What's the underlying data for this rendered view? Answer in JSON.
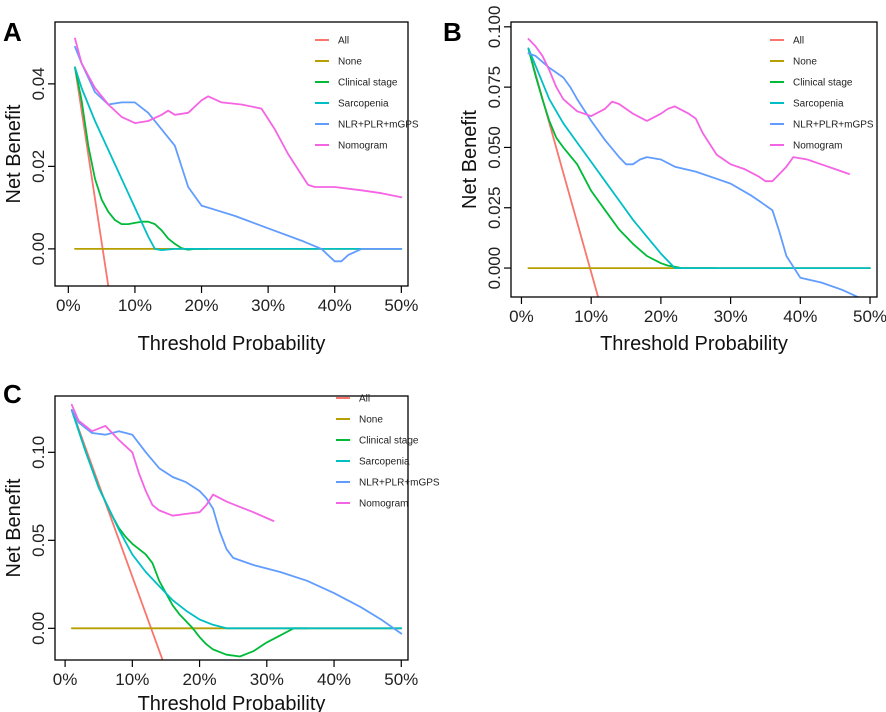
{
  "colors": {
    "All": "#F8766D",
    "None": "#B79F00",
    "Clinical stage": "#00BA38",
    "Sarcopenia": "#00BFC4",
    "NLR+PLR+mGPS": "#619CFF",
    "Nomogram": "#F564E3"
  },
  "chart_data": [
    {
      "panel": "A",
      "type": "line",
      "xlabel": "Threshold Probability",
      "ylabel": "Net Benefit",
      "xlim": [
        -0.02,
        0.51
      ],
      "ylim": [
        -0.009,
        0.055
      ],
      "xticks": [
        0,
        0.1,
        0.2,
        0.3,
        0.4,
        0.5
      ],
      "xtick_labels": [
        "0%",
        "10%",
        "20%",
        "30%",
        "40%",
        "50%"
      ],
      "yticks": [
        0,
        0.02,
        0.04
      ],
      "ytick_labels": [
        "0.00",
        "0.02",
        "0.04"
      ],
      "legend": [
        "All",
        "None",
        "Clinical stage",
        "Sarcopenia",
        "NLR+PLR+mGPS",
        "Nomogram"
      ],
      "series": [
        {
          "name": "All",
          "x": [
            0.01,
            0.06
          ],
          "y": [
            0.044,
            -0.009
          ]
        },
        {
          "name": "None",
          "x": [
            0.01,
            0.5
          ],
          "y": [
            0,
            0
          ]
        },
        {
          "name": "Clinical stage",
          "x": [
            0.01,
            0.02,
            0.03,
            0.04,
            0.05,
            0.06,
            0.07,
            0.08,
            0.09,
            0.1,
            0.11,
            0.12,
            0.13,
            0.14,
            0.15,
            0.16,
            0.17,
            0.18,
            0.19,
            0.2,
            0.21
          ],
          "y": [
            0.044,
            0.036,
            0.025,
            0.017,
            0.012,
            0.009,
            0.007,
            0.006,
            0.006,
            0.0063,
            0.0066,
            0.0066,
            0.006,
            0.0045,
            0.0025,
            0.0012,
            0.0002,
            -0.0002,
            0,
            0,
            0
          ]
        },
        {
          "name": "Sarcopenia",
          "x": [
            0.01,
            0.02,
            0.04,
            0.06,
            0.08,
            0.1,
            0.12,
            0.13,
            0.14,
            0.16,
            0.2,
            0.3,
            0.4,
            0.5
          ],
          "y": [
            0.044,
            0.039,
            0.031,
            0.024,
            0.017,
            0.01,
            0.003,
            0.0,
            -0.0003,
            0,
            0,
            0,
            0,
            0
          ]
        },
        {
          "name": "NLR+PLR+mGPS",
          "x": [
            0.01,
            0.02,
            0.04,
            0.06,
            0.08,
            0.1,
            0.12,
            0.14,
            0.16,
            0.17,
            0.18,
            0.2,
            0.22,
            0.25,
            0.3,
            0.35,
            0.38,
            0.4,
            0.41,
            0.42,
            0.44,
            0.46,
            0.5
          ],
          "y": [
            0.049,
            0.045,
            0.038,
            0.035,
            0.0355,
            0.0355,
            0.033,
            0.029,
            0.025,
            0.02,
            0.015,
            0.0105,
            0.0095,
            0.008,
            0.005,
            0.002,
            0,
            -0.003,
            -0.003,
            -0.0015,
            0,
            0,
            0
          ]
        },
        {
          "name": "Nomogram",
          "x": [
            0.01,
            0.02,
            0.04,
            0.06,
            0.08,
            0.1,
            0.12,
            0.14,
            0.15,
            0.16,
            0.18,
            0.2,
            0.21,
            0.23,
            0.26,
            0.29,
            0.31,
            0.33,
            0.35,
            0.36,
            0.37,
            0.4,
            0.44,
            0.47,
            0.5
          ],
          "y": [
            0.051,
            0.045,
            0.039,
            0.035,
            0.032,
            0.0305,
            0.031,
            0.0325,
            0.0335,
            0.0325,
            0.033,
            0.036,
            0.037,
            0.0355,
            0.035,
            0.034,
            0.029,
            0.023,
            0.018,
            0.0155,
            0.015,
            0.015,
            0.0142,
            0.0135,
            0.0125
          ]
        }
      ]
    },
    {
      "panel": "B",
      "type": "line",
      "xlabel": "Threshold Probability",
      "ylabel": "Net Benefit",
      "xlim": [
        -0.015,
        0.51
      ],
      "ylim": [
        -0.012,
        0.102
      ],
      "xticks": [
        0,
        0.1,
        0.2,
        0.3,
        0.4,
        0.5
      ],
      "xtick_labels": [
        "0%",
        "10%",
        "20%",
        "30%",
        "40%",
        "50%"
      ],
      "yticks": [
        0,
        0.025,
        0.05,
        0.075,
        0.1
      ],
      "ytick_labels": [
        "0.000",
        "0.025",
        "0.050",
        "0.075",
        "0.100"
      ],
      "legend": [
        "All",
        "None",
        "Clinical stage",
        "Sarcopenia",
        "NLR+PLR+mGPS",
        "Nomogram"
      ],
      "series": [
        {
          "name": "All",
          "x": [
            0.01,
            0.11
          ],
          "y": [
            0.091,
            -0.012
          ]
        },
        {
          "name": "None",
          "x": [
            0.01,
            0.5
          ],
          "y": [
            0,
            0
          ]
        },
        {
          "name": "Clinical stage",
          "x": [
            0.01,
            0.02,
            0.03,
            0.04,
            0.05,
            0.06,
            0.08,
            0.1,
            0.12,
            0.14,
            0.16,
            0.18,
            0.2,
            0.21,
            0.22,
            0.23,
            0.25,
            0.28
          ],
          "y": [
            0.091,
            0.08,
            0.07,
            0.061,
            0.054,
            0.05,
            0.043,
            0.032,
            0.024,
            0.016,
            0.01,
            0.005,
            0.002,
            0.001,
            0.0005,
            0,
            0,
            0
          ]
        },
        {
          "name": "Sarcopenia",
          "x": [
            0.01,
            0.02,
            0.04,
            0.06,
            0.08,
            0.1,
            0.12,
            0.14,
            0.16,
            0.18,
            0.2,
            0.22,
            0.3,
            0.4,
            0.5
          ],
          "y": [
            0.091,
            0.084,
            0.07,
            0.06,
            0.052,
            0.044,
            0.036,
            0.028,
            0.02,
            0.013,
            0.006,
            0,
            0,
            0,
            0
          ]
        },
        {
          "name": "NLR+PLR+mGPS",
          "x": [
            0.01,
            0.02,
            0.04,
            0.06,
            0.07,
            0.08,
            0.1,
            0.12,
            0.14,
            0.15,
            0.16,
            0.17,
            0.18,
            0.2,
            0.22,
            0.25,
            0.28,
            0.3,
            0.33,
            0.34,
            0.36,
            0.37,
            0.38,
            0.4,
            0.43,
            0.46,
            0.49
          ],
          "y": [
            0.089,
            0.088,
            0.083,
            0.079,
            0.075,
            0.07,
            0.061,
            0.053,
            0.046,
            0.043,
            0.043,
            0.045,
            0.046,
            0.045,
            0.042,
            0.04,
            0.037,
            0.035,
            0.03,
            0.028,
            0.024,
            0.015,
            0.005,
            -0.004,
            -0.006,
            -0.009,
            -0.013
          ]
        },
        {
          "name": "Nomogram",
          "x": [
            0.01,
            0.02,
            0.03,
            0.04,
            0.05,
            0.06,
            0.08,
            0.1,
            0.12,
            0.13,
            0.14,
            0.16,
            0.18,
            0.2,
            0.21,
            0.22,
            0.24,
            0.25,
            0.26,
            0.28,
            0.3,
            0.32,
            0.34,
            0.35,
            0.36,
            0.38,
            0.39,
            0.41,
            0.43,
            0.45,
            0.47
          ],
          "y": [
            0.095,
            0.092,
            0.088,
            0.082,
            0.075,
            0.07,
            0.065,
            0.063,
            0.066,
            0.069,
            0.068,
            0.064,
            0.061,
            0.064,
            0.066,
            0.067,
            0.064,
            0.062,
            0.056,
            0.047,
            0.043,
            0.041,
            0.038,
            0.036,
            0.036,
            0.042,
            0.046,
            0.045,
            0.043,
            0.041,
            0.039
          ]
        }
      ]
    },
    {
      "panel": "C",
      "type": "line",
      "xlabel": "Threshold Probability",
      "ylabel": "Net Benefit",
      "xlim": [
        -0.015,
        0.51
      ],
      "ylim": [
        -0.018,
        0.132
      ],
      "xticks": [
        0,
        0.1,
        0.2,
        0.3,
        0.4,
        0.5
      ],
      "xtick_labels": [
        "0%",
        "10%",
        "20%",
        "30%",
        "40%",
        "50%"
      ],
      "yticks": [
        0,
        0.05,
        0.1
      ],
      "ytick_labels": [
        "0.00",
        "0.05",
        "0.10"
      ],
      "legend": [
        "All",
        "None",
        "Clinical stage",
        "Sarcopenia",
        "NLR+PLR+mGPS",
        "Nomogram"
      ],
      "series": [
        {
          "name": "All",
          "x": [
            0.01,
            0.145
          ],
          "y": [
            0.124,
            -0.018
          ]
        },
        {
          "name": "None",
          "x": [
            0.01,
            0.5
          ],
          "y": [
            0,
            0
          ]
        },
        {
          "name": "Clinical stage",
          "x": [
            0.01,
            0.03,
            0.05,
            0.07,
            0.08,
            0.09,
            0.1,
            0.11,
            0.12,
            0.13,
            0.14,
            0.15,
            0.16,
            0.17,
            0.18,
            0.19,
            0.2,
            0.21,
            0.22,
            0.24,
            0.26,
            0.28,
            0.3,
            0.32,
            0.34,
            0.36
          ],
          "y": [
            0.124,
            0.101,
            0.08,
            0.064,
            0.057,
            0.052,
            0.048,
            0.045,
            0.042,
            0.037,
            0.027,
            0.02,
            0.013,
            0.008,
            0.004,
            0,
            -0.005,
            -0.009,
            -0.012,
            -0.015,
            -0.016,
            -0.013,
            -0.008,
            -0.004,
            0,
            0
          ]
        },
        {
          "name": "Sarcopenia",
          "x": [
            0.01,
            0.03,
            0.05,
            0.07,
            0.08,
            0.09,
            0.1,
            0.12,
            0.14,
            0.16,
            0.18,
            0.2,
            0.22,
            0.24,
            0.3,
            0.4,
            0.5
          ],
          "y": [
            0.124,
            0.101,
            0.08,
            0.064,
            0.056,
            0.049,
            0.042,
            0.032,
            0.024,
            0.016,
            0.01,
            0.005,
            0.002,
            0,
            0,
            0,
            0
          ]
        },
        {
          "name": "NLR+PLR+mGPS",
          "x": [
            0.01,
            0.02,
            0.04,
            0.06,
            0.08,
            0.1,
            0.12,
            0.14,
            0.16,
            0.18,
            0.2,
            0.21,
            0.22,
            0.23,
            0.24,
            0.25,
            0.28,
            0.32,
            0.36,
            0.4,
            0.44,
            0.47,
            0.5
          ],
          "y": [
            0.124,
            0.117,
            0.111,
            0.11,
            0.112,
            0.11,
            0.1,
            0.091,
            0.086,
            0.083,
            0.078,
            0.074,
            0.068,
            0.055,
            0.045,
            0.04,
            0.036,
            0.032,
            0.027,
            0.02,
            0.012,
            0.005,
            -0.003
          ]
        },
        {
          "name": "Nomogram",
          "x": [
            0.01,
            0.02,
            0.04,
            0.06,
            0.08,
            0.1,
            0.11,
            0.12,
            0.13,
            0.14,
            0.16,
            0.18,
            0.2,
            0.21,
            0.22,
            0.24,
            0.26,
            0.28,
            0.31
          ],
          "y": [
            0.127,
            0.118,
            0.112,
            0.115,
            0.107,
            0.1,
            0.088,
            0.078,
            0.07,
            0.067,
            0.064,
            0.065,
            0.066,
            0.07,
            0.076,
            0.072,
            0.069,
            0.066,
            0.061
          ]
        }
      ]
    }
  ]
}
